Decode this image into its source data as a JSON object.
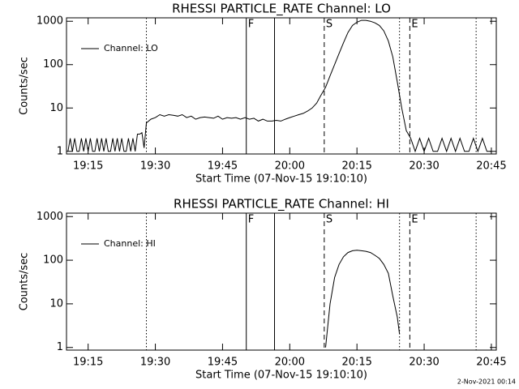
{
  "chart_data": [
    {
      "type": "line",
      "title": "RHESSI PARTICLE_RATE Channel: LO",
      "xlabel": "Start Time (07-Nov-15 19:10:10)",
      "ylabel": "Counts/sec",
      "log_y": true,
      "legend": "upper left",
      "xlim": [
        10.17,
        106.1
      ],
      "ylim": [
        0.87,
        1200
      ],
      "xticks": [
        {
          "value": 15,
          "label": "19:15"
        },
        {
          "value": 30,
          "label": "19:30"
        },
        {
          "value": 45,
          "label": "19:45"
        },
        {
          "value": 60,
          "label": "20:00"
        },
        {
          "value": 75,
          "label": "20:15"
        },
        {
          "value": 90,
          "label": "20:30"
        },
        {
          "value": 105,
          "label": "20:45"
        }
      ],
      "yticks": [
        1,
        10,
        100,
        1000
      ],
      "markers": [
        {
          "x": 28.0,
          "style": "dotted"
        },
        {
          "x": 50.3,
          "style": "solid",
          "label": "F"
        },
        {
          "x": 56.6,
          "style": "solid"
        },
        {
          "x": 67.7,
          "style": "dashed",
          "label": "S"
        },
        {
          "x": 84.5,
          "style": "dotted"
        },
        {
          "x": 86.8,
          "style": "dashed",
          "label": "E"
        },
        {
          "x": 101.6,
          "style": "dotted"
        }
      ],
      "x": [
        10.5,
        11,
        11.5,
        12,
        12.5,
        13,
        13.5,
        14,
        14.5,
        15,
        15.5,
        16,
        16.5,
        17,
        17.5,
        18,
        18.5,
        19,
        19.5,
        20,
        20.5,
        21,
        21.5,
        22,
        22.5,
        23,
        23.5,
        24,
        24.5,
        25,
        25.5,
        26,
        26.5,
        27,
        27.5,
        28,
        29,
        30,
        31,
        32,
        33,
        34,
        35,
        36,
        37,
        38,
        39,
        40,
        41,
        42,
        43,
        44,
        45,
        46,
        47,
        48,
        49,
        50,
        51,
        52,
        53,
        54,
        55,
        56,
        57,
        58,
        59,
        60,
        61,
        62,
        63,
        64,
        65,
        66,
        67,
        68,
        69,
        70,
        71,
        72,
        73,
        74,
        75,
        76,
        77,
        78,
        79,
        80,
        81,
        82,
        83,
        84,
        85,
        86,
        87,
        88,
        89,
        90,
        91,
        92,
        93,
        94,
        95,
        96,
        97,
        98,
        99,
        100,
        101,
        102,
        103,
        104,
        105
      ],
      "series": [
        {
          "name": "Channel: LO",
          "color": "#000000",
          "values": [
            1,
            2,
            1,
            2,
            1,
            1,
            2,
            1,
            2,
            1,
            2,
            1,
            1,
            2,
            1,
            2,
            1,
            2,
            1,
            1,
            2,
            1,
            2,
            1,
            2,
            1,
            1,
            2,
            1,
            2,
            1,
            2.5,
            2.5,
            2.7,
            1.2,
            4.5,
            5.5,
            6,
            7,
            6.5,
            7,
            6.8,
            6.5,
            7,
            6,
            6.5,
            5.5,
            6,
            6.2,
            6,
            5.8,
            6.5,
            5.5,
            6,
            5.8,
            6,
            5.5,
            6,
            5.5,
            5.8,
            5,
            5.5,
            5,
            5,
            5.2,
            5,
            5.5,
            6,
            6.5,
            7,
            7.5,
            8.5,
            10,
            13,
            20,
            30,
            55,
            100,
            180,
            320,
            550,
            800,
            950,
            1050,
            1050,
            1000,
            920,
            800,
            600,
            350,
            150,
            40,
            10,
            3,
            2,
            1,
            2,
            1,
            2,
            1,
            1,
            2,
            1,
            2,
            1,
            2,
            1,
            1,
            2,
            1,
            2,
            1,
            1
          ]
        }
      ]
    },
    {
      "type": "line",
      "title": "RHESSI PARTICLE_RATE Channel: HI",
      "xlabel": "Start Time (07-Nov-15 19:10:10)",
      "ylabel": "Counts/sec",
      "log_y": true,
      "legend": "upper left",
      "xlim": [
        10.17,
        106.1
      ],
      "ylim": [
        0.87,
        1200
      ],
      "xticks": [
        {
          "value": 15,
          "label": "19:15"
        },
        {
          "value": 30,
          "label": "19:30"
        },
        {
          "value": 45,
          "label": "19:45"
        },
        {
          "value": 60,
          "label": "20:00"
        },
        {
          "value": 75,
          "label": "20:15"
        },
        {
          "value": 90,
          "label": "20:30"
        },
        {
          "value": 105,
          "label": "20:45"
        }
      ],
      "yticks": [
        1,
        10,
        100,
        1000
      ],
      "markers": [
        {
          "x": 28.0,
          "style": "dotted"
        },
        {
          "x": 50.3,
          "style": "solid",
          "label": "F"
        },
        {
          "x": 56.6,
          "style": "solid"
        },
        {
          "x": 67.7,
          "style": "dashed",
          "label": "S"
        },
        {
          "x": 84.5,
          "style": "dotted"
        },
        {
          "x": 86.8,
          "style": "dashed",
          "label": "E"
        },
        {
          "x": 101.6,
          "style": "dotted"
        }
      ],
      "x": [
        68,
        69,
        70,
        71,
        72,
        73,
        74,
        75,
        76,
        77,
        78,
        79,
        80,
        81,
        82,
        83,
        84,
        84.5
      ],
      "series": [
        {
          "name": "Channel: HI",
          "color": "#000000",
          "values": [
            1,
            10,
            40,
            80,
            120,
            150,
            165,
            170,
            165,
            160,
            150,
            130,
            110,
            80,
            50,
            15,
            5,
            2
          ]
        }
      ]
    }
  ],
  "timestamp": "2-Nov-2021 00:14"
}
